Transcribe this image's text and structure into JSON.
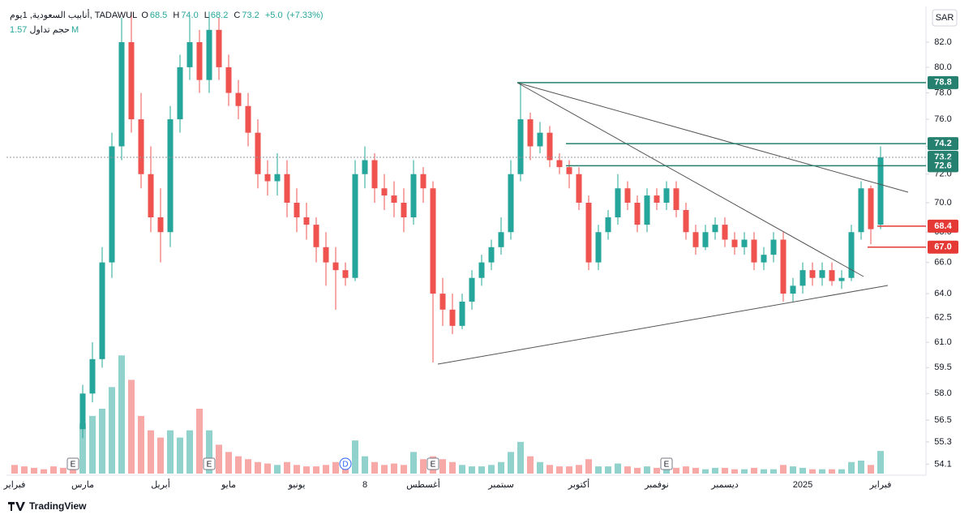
{
  "chart_data": {
    "type": "candlestick",
    "symbol": "أنابيب السعودية, 1يوم, TADAWUL",
    "ohlc": [
      {
        "key": "O",
        "value": 68.5
      },
      {
        "key": "H",
        "value": 74,
        "label": "74.0"
      },
      {
        "key": "L",
        "value": 68.2
      },
      {
        "key": "C",
        "value": 73.2
      }
    ],
    "change": {
      "value": 5,
      "label": "+5.0"
    },
    "change_pct": {
      "value": 7.33,
      "label": "(+7.33%)"
    },
    "volume_title": "حجم تداول",
    "volume_last": {
      "value": 1.57,
      "label": "1.57M"
    },
    "currency": "SAR",
    "logo": "TradingView",
    "log_scale": true,
    "grid": false,
    "up_color": "#26a69a",
    "down_color": "#ef5350",
    "ylim": [
      53.6,
      84.8
    ],
    "yticks": [
      {
        "value": 82,
        "label": "82.0"
      },
      {
        "value": 80,
        "label": "80.0"
      },
      {
        "value": 78,
        "label": "78.0"
      },
      {
        "value": 76,
        "label": "76.0"
      },
      {
        "value": 74,
        "label": "74.0"
      },
      {
        "value": 72,
        "label": "72.0"
      },
      {
        "value": 70,
        "label": "70.0"
      },
      {
        "value": 68,
        "label": "68.0"
      },
      {
        "value": 66,
        "label": "66.0"
      },
      {
        "value": 64,
        "label": "64.0"
      },
      62.5,
      {
        "value": 61,
        "label": "61.0"
      },
      59.5,
      {
        "value": 58,
        "label": "58.0"
      },
      56.5,
      55.3,
      54.1
    ],
    "volume_ylim": [
      0,
      9
    ],
    "categories": [
      "فبراير",
      null,
      null,
      null,
      null,
      null,
      null,
      "مارس",
      null,
      null,
      null,
      null,
      null,
      null,
      null,
      "أبريل",
      null,
      null,
      null,
      null,
      null,
      null,
      "مايو",
      null,
      null,
      null,
      null,
      null,
      null,
      "يونيو",
      null,
      null,
      null,
      null,
      null,
      null,
      "8",
      null,
      null,
      null,
      null,
      null,
      "أغسطس",
      null,
      null,
      null,
      null,
      null,
      null,
      null,
      "سبتمبر",
      null,
      null,
      null,
      null,
      null,
      null,
      null,
      "أكتوبر",
      null,
      null,
      null,
      null,
      null,
      null,
      null,
      "نوفمبر",
      null,
      null,
      null,
      null,
      null,
      null,
      "ديسمبر",
      null,
      null,
      null,
      null,
      null,
      null,
      null,
      "2025",
      null,
      null,
      null,
      null,
      null,
      null,
      null,
      "فبراير"
    ],
    "open": [
      null,
      null,
      null,
      null,
      null,
      null,
      null,
      56,
      58,
      60,
      66,
      74,
      82,
      76,
      72,
      69,
      68,
      76,
      80,
      82,
      79,
      83,
      80,
      78,
      77,
      75,
      72,
      71.5,
      72,
      70,
      69,
      68.5,
      67,
      66,
      65.5,
      65,
      72,
      73,
      71,
      70.5,
      70,
      69,
      72,
      71,
      64,
      63,
      62,
      63.5,
      65,
      66,
      67,
      68,
      72,
      76,
      74,
      75,
      73,
      72.5,
      72,
      70,
      66,
      68,
      69,
      71,
      70,
      68.5,
      70.5,
      70,
      71,
      69.5,
      68,
      67,
      68,
      68.5,
      67.5,
      67,
      67.5,
      66,
      66.5,
      67.5,
      64,
      64.5,
      65.5,
      65,
      65.5,
      64.8,
      65,
      68,
      71,
      68.5
    ],
    "high": [
      null,
      null,
      null,
      null,
      null,
      null,
      null,
      58.5,
      61,
      67,
      75,
      84,
      84.5,
      78,
      74,
      71,
      77,
      81,
      84,
      83,
      84.5,
      84,
      81,
      79,
      78,
      76,
      73,
      73.5,
      73,
      71,
      70,
      69,
      68,
      67,
      66,
      73,
      74,
      73.5,
      72,
      71.5,
      71,
      73,
      72.5,
      71.5,
      65,
      64,
      64,
      65.5,
      66.5,
      67.5,
      69,
      73,
      78.8,
      76.5,
      75.8,
      75.5,
      73.5,
      73,
      72.5,
      70.5,
      68.5,
      69.5,
      72,
      71.5,
      70.5,
      71,
      71,
      71.5,
      71.5,
      70,
      68.5,
      68.5,
      69,
      69,
      68,
      68,
      68,
      67,
      68,
      68,
      65,
      66,
      66,
      66,
      66,
      65.5,
      68.5,
      71.5,
      71.2,
      74
    ],
    "low": [
      null,
      null,
      null,
      null,
      null,
      null,
      null,
      55.5,
      57.5,
      59.5,
      65,
      73,
      75,
      71,
      68,
      66,
      67,
      75,
      79,
      78,
      78,
      79,
      77,
      76,
      74,
      71,
      70.5,
      70.5,
      69,
      68,
      67.5,
      66,
      64.5,
      63,
      64.5,
      64.8,
      71,
      70,
      69.5,
      69,
      68,
      68.5,
      70,
      59.8,
      62,
      61.5,
      61.8,
      63,
      64.5,
      65.5,
      66.5,
      67.5,
      71.5,
      73,
      73.5,
      72.5,
      72,
      71,
      69.5,
      65.5,
      65.5,
      67.5,
      68.5,
      69.5,
      68,
      68,
      69.5,
      69.5,
      69,
      67.5,
      66.5,
      66.8,
      67.5,
      67,
      66.5,
      66.5,
      65.5,
      65.5,
      66,
      63.5,
      63.5,
      64,
      64.5,
      64.5,
      64.5,
      64.3,
      64.8,
      67.5,
      67.2,
      68.2
    ],
    "close": [
      null,
      null,
      null,
      null,
      null,
      null,
      null,
      58,
      60,
      66,
      74,
      82,
      76,
      72,
      69,
      68,
      76,
      80,
      82,
      79,
      83,
      80,
      78,
      77,
      75,
      72,
      71.5,
      72,
      70,
      69,
      68.5,
      67,
      66,
      65.5,
      65,
      72,
      73,
      71,
      70.5,
      70,
      69,
      72,
      71,
      64,
      63,
      62,
      63.5,
      65,
      66,
      67,
      68,
      72,
      76,
      74,
      75,
      73,
      72.5,
      72,
      70,
      66,
      68,
      69,
      71,
      70,
      68.5,
      70.5,
      70,
      71,
      69.5,
      68,
      67,
      68,
      68.5,
      67.5,
      67,
      67.5,
      66,
      66.5,
      67.5,
      64,
      64.5,
      65.5,
      65,
      65.5,
      64.8,
      65,
      68,
      71,
      68.2,
      73.2
    ],
    "volume": [
      0.6,
      0.5,
      0.4,
      0.3,
      0.5,
      0.4,
      0.8,
      3.5,
      4,
      4.5,
      6,
      8.2,
      6.5,
      4,
      3,
      2.5,
      3,
      2.5,
      3,
      4.5,
      3,
      2,
      1.5,
      1.2,
      1,
      0.8,
      0.7,
      0.6,
      0.8,
      0.6,
      0.5,
      0.5,
      0.6,
      0.8,
      0.5,
      2.3,
      1.2,
      0.8,
      0.6,
      0.7,
      0.6,
      1.5,
      1,
      1.2,
      1,
      0.8,
      0.6,
      0.5,
      0.5,
      0.6,
      0.8,
      1.5,
      2.2,
      1.2,
      0.8,
      0.6,
      0.5,
      0.5,
      0.6,
      1,
      0.5,
      0.5,
      0.7,
      0.5,
      0.4,
      0.5,
      0.4,
      0.5,
      0.4,
      0.5,
      0.4,
      0.3,
      0.4,
      0.4,
      0.3,
      0.3,
      0.4,
      0.3,
      0.3,
      0.6,
      0.5,
      0.4,
      0.3,
      0.3,
      0.3,
      0.3,
      0.8,
      0.9,
      0.6,
      1.57
    ],
    "levels": [
      {
        "value": 78.8,
        "color": "#26806f",
        "start": 52
      },
      {
        "value": 74.2,
        "color": "#26806f",
        "start": 57
      },
      {
        "value": 73.2,
        "color": "#26806f",
        "dashed": true
      },
      {
        "value": 72.6,
        "color": "#26806f",
        "start": 57
      },
      {
        "value": 68.4,
        "color": "#e53935",
        "start": 89
      },
      {
        "value": 67,
        "label": "67.0",
        "color": "#e53935",
        "start": 88
      }
    ],
    "events": [
      {
        "index": 6,
        "label": "E"
      },
      {
        "index": 20,
        "label": "E"
      },
      {
        "index": 34,
        "label": "D"
      },
      {
        "index": 43,
        "label": "E"
      },
      {
        "index": 67,
        "label": "E"
      }
    ]
  }
}
